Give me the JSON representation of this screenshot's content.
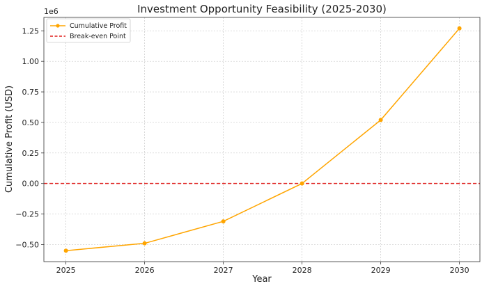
{
  "chart_data": {
    "type": "line",
    "title": "Investment Opportunity Feasibility (2025-2030)",
    "xlabel": "Year",
    "ylabel": "Cumulative Profit (USD)",
    "y_multiplier_label": "1e6",
    "x": [
      2025,
      2026,
      2027,
      2028,
      2029,
      2030
    ],
    "x_tick_labels": [
      "2025",
      "2026",
      "2027",
      "2028",
      "2029",
      "2030"
    ],
    "y_ticks": [
      -0.5,
      -0.25,
      0.0,
      0.25,
      0.5,
      0.75,
      1.0,
      1.25
    ],
    "y_tick_labels": [
      "−0.50",
      "−0.25",
      "0.00",
      "0.25",
      "0.50",
      "0.75",
      "1.00",
      "1.25"
    ],
    "ylim": [
      -0.64,
      1.36
    ],
    "xlim": [
      2024.72,
      2030.26
    ],
    "series": [
      {
        "name": "Cumulative Profit",
        "color": "#FFA500",
        "values": [
          -0.55,
          -0.49,
          -0.31,
          0.0,
          0.52,
          1.27
        ]
      }
    ],
    "reference_lines": [
      {
        "name": "Break-even Point",
        "y": 0.0,
        "color": "#E0201F",
        "style": "dashed"
      }
    ],
    "grid": true,
    "legend_position": "top-left"
  }
}
